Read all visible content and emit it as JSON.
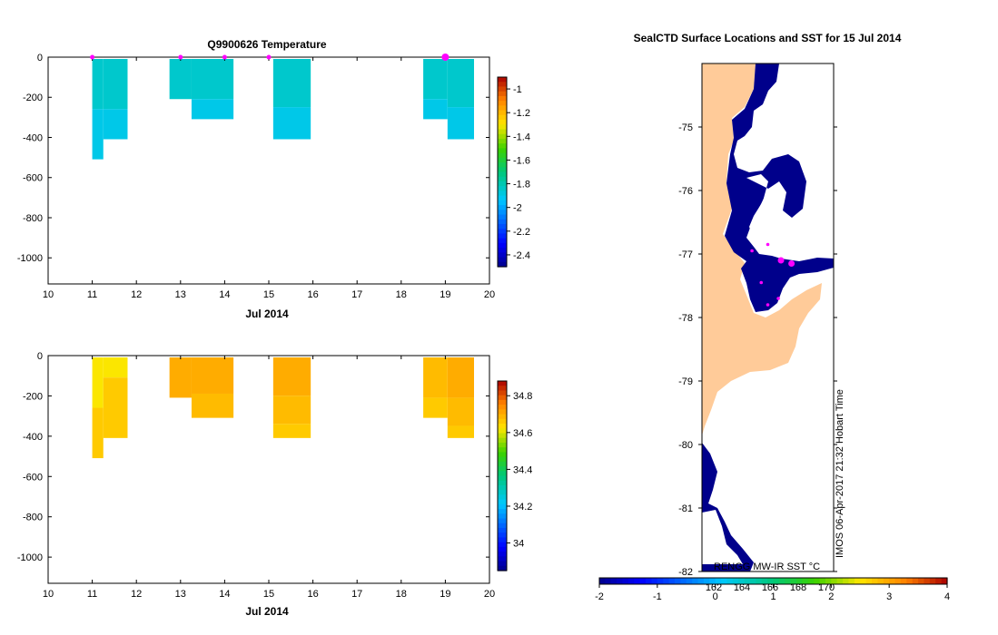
{
  "colors": {
    "temperature_fill": "#00c487",
    "temperature_fill_deep": "#00b36e",
    "salinity_fill": "#ff9a0a",
    "salinity_fill_deep": "#f07a00",
    "land": "#ffcb99",
    "sst_low": "#00008b",
    "profile_marker": "#ff00ff"
  },
  "chart_data": [
    {
      "type": "heatmap",
      "id": "temperature",
      "title": "Q9900626  Temperature",
      "xlabel": "Jul 2014",
      "ylabel": "",
      "xlim": [
        10,
        20
      ],
      "ylim": [
        -1130,
        0
      ],
      "xticks": [
        "10",
        "11",
        "12",
        "13",
        "14",
        "15",
        "16",
        "17",
        "18",
        "19",
        "20"
      ],
      "yticks": [
        "0",
        "-200",
        "-400",
        "-600",
        "-800",
        "-1000"
      ],
      "profile_markers": [
        11,
        13,
        14,
        15,
        19
      ],
      "columns": [
        {
          "x0": 11.0,
          "x1": 11.25,
          "cells": [
            {
              "top": 0,
              "bottom": -250,
              "value": -1.85
            },
            {
              "top": -250,
              "bottom": -500,
              "value": -1.9
            }
          ]
        },
        {
          "x0": 11.25,
          "x1": 11.8,
          "cells": [
            {
              "top": 0,
              "bottom": -250,
              "value": -1.85
            },
            {
              "top": -250,
              "bottom": -400,
              "value": -1.9
            }
          ]
        },
        {
          "x0": 12.75,
          "x1": 13.25,
          "cells": [
            {
              "top": 0,
              "bottom": -200,
              "value": -1.85
            }
          ]
        },
        {
          "x0": 13.25,
          "x1": 14.2,
          "cells": [
            {
              "top": 0,
              "bottom": -200,
              "value": -1.85
            },
            {
              "top": -200,
              "bottom": -300,
              "value": -1.9
            }
          ]
        },
        {
          "x0": 15.1,
          "x1": 15.95,
          "cells": [
            {
              "top": 0,
              "bottom": -240,
              "value": -1.85
            },
            {
              "top": -240,
              "bottom": -400,
              "value": -1.9
            }
          ]
        },
        {
          "x0": 18.5,
          "x1": 19.05,
          "cells": [
            {
              "top": 0,
              "bottom": -200,
              "value": -1.85
            },
            {
              "top": -200,
              "bottom": -300,
              "value": -1.9
            }
          ]
        },
        {
          "x0": 19.05,
          "x1": 19.65,
          "cells": [
            {
              "top": 0,
              "bottom": -240,
              "value": -1.85
            },
            {
              "top": -240,
              "bottom": -400,
              "value": -1.9
            }
          ]
        }
      ],
      "colorbar": {
        "vmin": -2.5,
        "vmax": -0.9,
        "ticks": [
          "-1",
          "-1.2",
          "-1.4",
          "-1.6",
          "-1.8",
          "-2",
          "-2.2",
          "-2.4"
        ]
      }
    },
    {
      "type": "heatmap",
      "id": "salinity",
      "title": "",
      "xlabel": "Jul 2014",
      "ylabel": "",
      "xlim": [
        10,
        20
      ],
      "ylim": [
        -1130,
        0
      ],
      "xticks": [
        "10",
        "11",
        "12",
        "13",
        "14",
        "15",
        "16",
        "17",
        "18",
        "19",
        "20"
      ],
      "yticks": [
        "0",
        "-200",
        "-400",
        "-600",
        "-800",
        "-1000"
      ],
      "columns": [
        {
          "x0": 11.0,
          "x1": 11.25,
          "cells": [
            {
              "top": 0,
              "bottom": -250,
              "value": 34.62
            },
            {
              "top": -250,
              "bottom": -500,
              "value": 34.66
            }
          ]
        },
        {
          "x0": 11.25,
          "x1": 11.8,
          "cells": [
            {
              "top": 0,
              "bottom": -100,
              "value": 34.62
            },
            {
              "top": -100,
              "bottom": -400,
              "value": 34.66
            }
          ]
        },
        {
          "x0": 12.75,
          "x1": 13.25,
          "cells": [
            {
              "top": 0,
              "bottom": -200,
              "value": 34.7
            }
          ]
        },
        {
          "x0": 13.25,
          "x1": 14.2,
          "cells": [
            {
              "top": 0,
              "bottom": -180,
              "value": 34.7
            },
            {
              "top": -180,
              "bottom": -300,
              "value": 34.68
            }
          ]
        },
        {
          "x0": 15.1,
          "x1": 15.95,
          "cells": [
            {
              "top": 0,
              "bottom": -190,
              "value": 34.7
            },
            {
              "top": -190,
              "bottom": -330,
              "value": 34.68
            },
            {
              "top": -330,
              "bottom": -400,
              "value": 34.66
            }
          ]
        },
        {
          "x0": 18.5,
          "x1": 19.05,
          "cells": [
            {
              "top": 0,
              "bottom": -200,
              "value": 34.68
            },
            {
              "top": -200,
              "bottom": -300,
              "value": 34.66
            }
          ]
        },
        {
          "x0": 19.05,
          "x1": 19.65,
          "cells": [
            {
              "top": 0,
              "bottom": -200,
              "value": 34.7
            },
            {
              "top": -200,
              "bottom": -340,
              "value": 34.68
            },
            {
              "top": -340,
              "bottom": -400,
              "value": 34.66
            }
          ]
        }
      ],
      "colorbar": {
        "vmin": 33.85,
        "vmax": 34.88,
        "ticks": [
          "34.8",
          "34.6",
          "34.4",
          "34.2",
          "34"
        ]
      }
    },
    {
      "type": "map",
      "id": "sst_map",
      "title": "SealCTD Surface Locations and SST for 15 Jul 2014",
      "ylim": [
        -82,
        -74
      ],
      "yticks": [
        "-75",
        "-76",
        "-77",
        "-78",
        "-79",
        "-80",
        "-81",
        "-82"
      ],
      "credit": "IMOS 06-Apr-2017 21:32 Hobart Time",
      "colorbar": {
        "label": "RENGG MW-IR SST °C",
        "vmin": -2,
        "vmax": 4,
        "ticks": [
          "-2",
          "-1",
          "0",
          "1",
          "2",
          "3",
          "4"
        ],
        "inner_ticks": [
          "162",
          "164",
          "166",
          "168",
          "170"
        ]
      },
      "positions": [
        {
          "lat": -77.15,
          "lon_frac": 0.68,
          "size": "large"
        },
        {
          "lat": -77.1,
          "lon_frac": 0.6,
          "size": "large"
        },
        {
          "lat": -76.95,
          "lon_frac": 0.38,
          "size": "small"
        },
        {
          "lat": -76.85,
          "lon_frac": 0.5,
          "size": "small"
        },
        {
          "lat": -77.45,
          "lon_frac": 0.45,
          "size": "small"
        },
        {
          "lat": -77.7,
          "lon_frac": 0.58,
          "size": "small"
        },
        {
          "lat": -77.8,
          "lon_frac": 0.5,
          "size": "small"
        }
      ]
    }
  ]
}
